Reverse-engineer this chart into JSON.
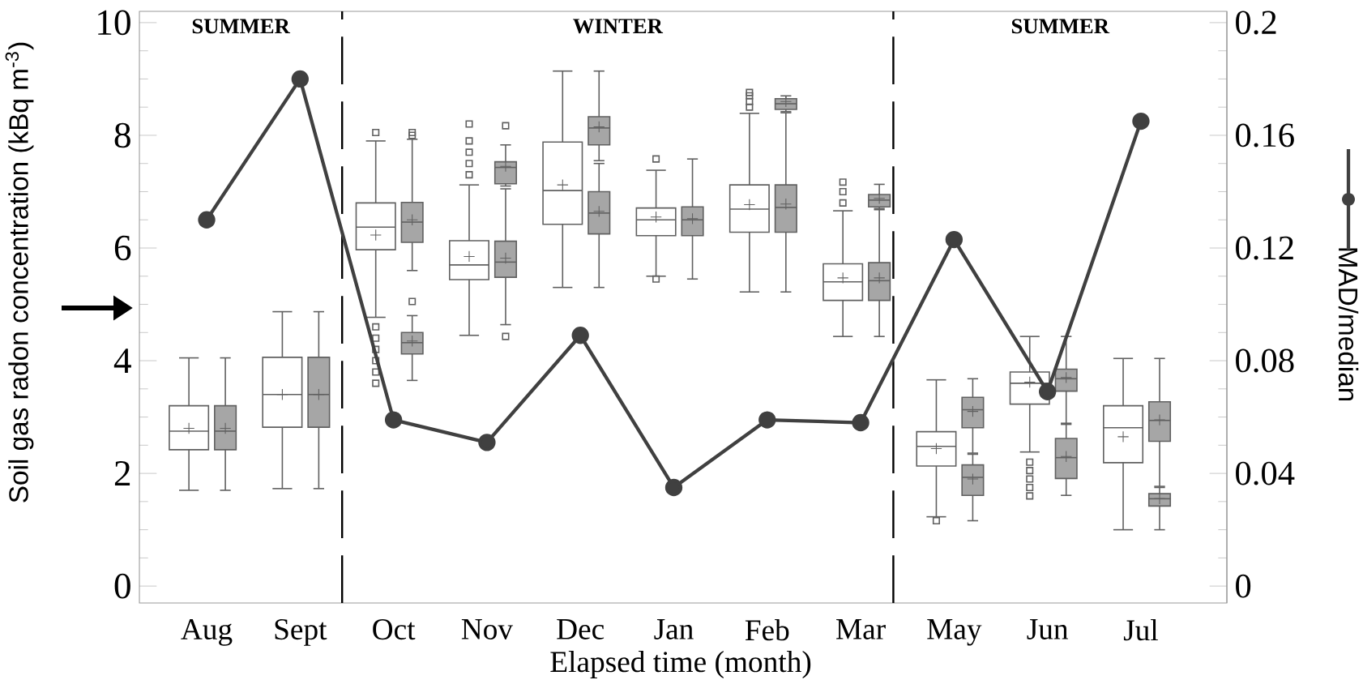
{
  "chart_data": {
    "type": "box",
    "xlabel": "Elapsed time (month)",
    "ylabel": "Soil gas radon concentration (kBq m$^{-3}$)",
    "y2label": "MAD/median",
    "categories": [
      "Aug",
      "Sept",
      "Oct",
      "Nov",
      "Dec",
      "Jan",
      "Feb",
      "Mar",
      "May",
      "Jun",
      "Jul"
    ],
    "ylim": [
      -0.3,
      10.2
    ],
    "yticks": [
      0,
      2,
      4,
      6,
      8,
      10
    ],
    "y2lim": [
      -0.006,
      0.204
    ],
    "y2ticks": [
      0,
      0.04,
      0.08,
      0.12,
      0.16,
      0.2
    ],
    "series": [
      {
        "color": "#ffffff",
        "boxes": [
          {
            "low": 1.7,
            "q1": 2.42,
            "median": 2.75,
            "q3": 3.2,
            "high": 4.05,
            "mean": 2.8
          },
          {
            "low": 1.73,
            "q1": 2.82,
            "median": 3.4,
            "q3": 4.06,
            "high": 4.87,
            "mean": 3.4
          },
          {
            "low": 4.77,
            "q1": 5.97,
            "median": 6.37,
            "q3": 6.8,
            "high": 7.9,
            "mean": 6.23,
            "outliers": [
              8.05,
              4.6,
              4.4,
              4.2,
              4.0,
              3.8,
              3.6
            ]
          },
          {
            "low": 4.45,
            "q1": 5.44,
            "median": 5.7,
            "q3": 6.13,
            "high": 7.12,
            "mean": 5.85,
            "outliers": [
              8.2,
              7.9,
              7.7,
              7.5,
              7.3
            ]
          },
          {
            "low": 5.3,
            "q1": 6.42,
            "median": 7.02,
            "q3": 7.88,
            "high": 9.14,
            "mean": 7.12
          },
          {
            "low": 5.5,
            "q1": 6.22,
            "median": 6.5,
            "q3": 6.71,
            "high": 7.38,
            "mean": 6.55,
            "outliers": [
              7.58,
              5.45
            ]
          },
          {
            "low": 5.22,
            "q1": 6.28,
            "median": 6.69,
            "q3": 7.12,
            "high": 8.39,
            "mean": 6.77,
            "outliers": [
              8.5,
              8.6,
              8.7,
              8.76
            ]
          },
          {
            "low": 4.43,
            "q1": 5.07,
            "median": 5.4,
            "q3": 5.72,
            "high": 6.66,
            "mean": 5.47,
            "outliers": [
              6.8,
              7.0,
              7.17
            ]
          },
          {
            "low": 1.23,
            "q1": 2.13,
            "median": 2.48,
            "q3": 2.74,
            "high": 3.66,
            "mean": 2.44,
            "outliers": [
              1.16
            ]
          },
          {
            "low": 2.38,
            "q1": 3.23,
            "median": 3.6,
            "q3": 3.8,
            "high": 4.43,
            "mean": 3.62,
            "outliers": [
              2.2,
              2.05,
              1.9,
              1.75,
              1.6
            ]
          },
          {
            "low": 1.0,
            "q1": 2.19,
            "median": 2.81,
            "q3": 3.2,
            "high": 4.04,
            "mean": 2.65
          }
        ]
      },
      {
        "color": "#a6a6a6",
        "boxes": [
          {
            "low": 1.7,
            "q1": 2.42,
            "median": 2.75,
            "q3": 3.2,
            "high": 4.05,
            "mean": 2.8
          },
          {
            "low": 1.73,
            "q1": 2.82,
            "median": 3.4,
            "q3": 4.06,
            "high": 4.87,
            "mean": 3.4
          },
          {
            "low": 5.6,
            "q1": 6.1,
            "median": 6.46,
            "q3": 6.81,
            "high": 7.93,
            "mean": 6.5,
            "outliers": [
              8.0,
              8.05,
              5.05
            ]
          },
          {
            "low": 4.64,
            "q1": 5.48,
            "median": 5.75,
            "q3": 6.12,
            "high": 7.05,
            "mean": 5.82,
            "outliers": [
              4.43
            ]
          },
          {
            "low": 5.3,
            "q1": 6.25,
            "median": 6.62,
            "q3": 7.0,
            "high": 7.5,
            "mean": 6.65
          },
          {
            "low": 5.45,
            "q1": 6.22,
            "median": 6.5,
            "q3": 6.73,
            "high": 7.58,
            "mean": 6.52
          },
          {
            "low": 5.22,
            "q1": 6.28,
            "median": 6.72,
            "q3": 7.12,
            "high": 8.4,
            "mean": 6.78
          },
          {
            "low": 4.43,
            "q1": 5.07,
            "median": 5.42,
            "q3": 5.74,
            "high": 6.68,
            "mean": 5.47
          },
          {
            "low": 2.36,
            "q1": 2.81,
            "median": 3.13,
            "q3": 3.35,
            "high": 3.68,
            "mean": 3.1
          },
          {
            "low": 2.89,
            "q1": 3.46,
            "median": 3.68,
            "q3": 3.85,
            "high": 4.43,
            "mean": 3.7
          },
          {
            "low": 1.77,
            "q1": 2.57,
            "median": 2.94,
            "q3": 3.27,
            "high": 4.04,
            "mean": 2.95
          }
        ]
      },
      {
        "color": "#a6a6a6",
        "boxes": [
          null,
          null,
          {
            "low": 3.65,
            "q1": 4.12,
            "median": 4.32,
            "q3": 4.5,
            "high": 4.8,
            "mean": 4.35
          },
          {
            "low": 7.1,
            "q1": 7.14,
            "median": 7.43,
            "q3": 7.53,
            "high": 7.83,
            "mean": 7.45,
            "outliers": [
              8.17
            ]
          },
          {
            "low": 7.55,
            "q1": 7.83,
            "median": 8.13,
            "q3": 8.33,
            "high": 9.14,
            "mean": 8.15
          },
          null,
          {
            "low": 8.42,
            "q1": 8.46,
            "median": 8.56,
            "q3": 8.65,
            "high": 8.7,
            "mean": 8.6
          },
          {
            "low": 6.7,
            "q1": 6.73,
            "median": 6.85,
            "q3": 6.95,
            "high": 7.13,
            "mean": 6.88
          },
          {
            "low": 1.16,
            "q1": 1.61,
            "median": 1.93,
            "q3": 2.15,
            "high": 2.34,
            "mean": 1.9
          },
          {
            "low": 1.61,
            "q1": 1.91,
            "median": 2.28,
            "q3": 2.62,
            "high": 2.87,
            "mean": 2.3
          },
          {
            "low": 1.0,
            "q1": 1.42,
            "median": 1.55,
            "q3": 1.64,
            "high": 1.75,
            "mean": 1.55
          }
        ]
      },
      {
        "type": "line",
        "axis": "y2",
        "color": "#404040",
        "marker": "circle",
        "line_style": "solid",
        "values": [
          0.13,
          0.18,
          0.059,
          0.051,
          0.089,
          0.035,
          0.059,
          0.058,
          0.123,
          0.069,
          0.165
        ]
      }
    ],
    "annotations": [
      "SUMMER",
      "WINTER",
      "SUMMER"
    ]
  }
}
